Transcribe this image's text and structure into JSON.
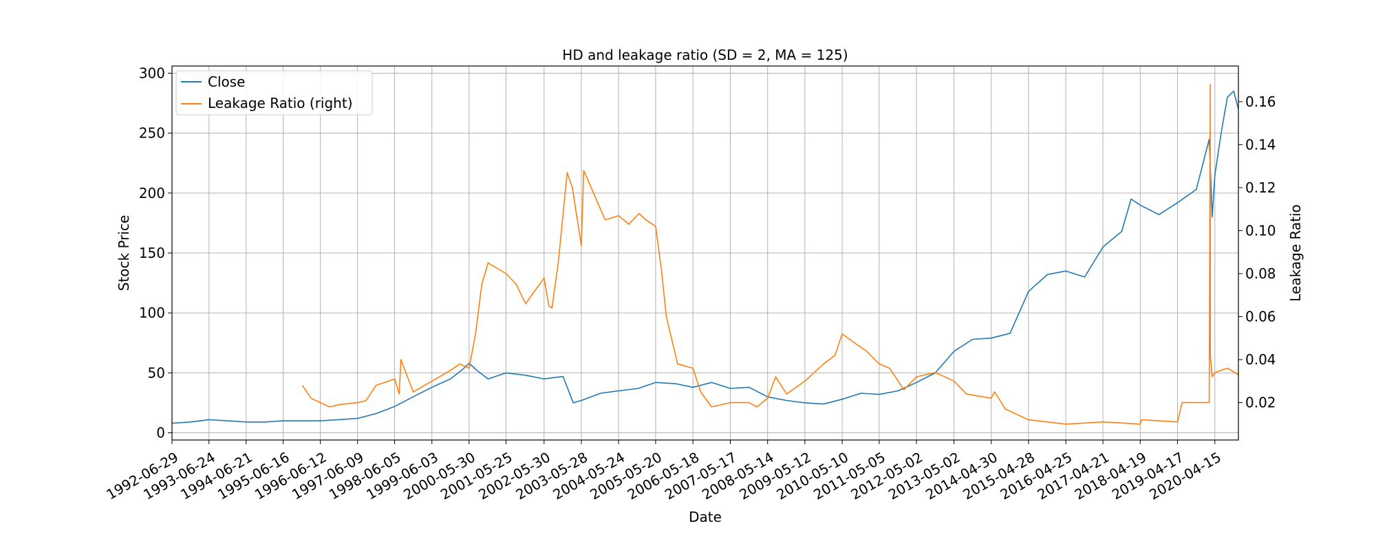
{
  "chart_data": {
    "type": "line",
    "title": "HD and leakage ratio (SD = 2, MA = 125)",
    "xlabel": "Date",
    "ylabel": "Stock Price",
    "y2label": "Leakage Ratio",
    "grid": true,
    "legend_position": "top-left",
    "x_ticks": [
      "1992-06-29",
      "1993-06-24",
      "1994-06-21",
      "1995-06-16",
      "1996-06-12",
      "1997-06-09",
      "1998-06-05",
      "1999-06-03",
      "2000-05-30",
      "2001-05-25",
      "2002-05-30",
      "2003-05-28",
      "2004-05-24",
      "2005-05-20",
      "2006-05-18",
      "2007-05-17",
      "2008-05-14",
      "2009-05-12",
      "2010-05-10",
      "2011-05-05",
      "2012-05-02",
      "2013-05-02",
      "2014-04-30",
      "2015-04-28",
      "2016-04-25",
      "2017-04-21",
      "2018-04-19",
      "2019-04-17",
      "2020-04-15"
    ],
    "xlim": [
      "1992-06-29",
      "2020-11-30"
    ],
    "ylim": [
      -6,
      306
    ],
    "y_ticks": [
      0,
      50,
      100,
      150,
      200,
      250,
      300
    ],
    "y2lim": [
      0.0026,
      0.1766
    ],
    "y2_ticks": [
      "0.02",
      "0.04",
      "0.06",
      "0.08",
      "0.10",
      "0.12",
      "0.14",
      "0.16"
    ],
    "series": [
      {
        "name": "Close",
        "axis": "left",
        "color": "#1f77b4",
        "x": [
          "1992-06-29",
          "1992-12-29",
          "1993-06-24",
          "1993-12-20",
          "1994-06-21",
          "1994-12-19",
          "1995-06-16",
          "1995-12-14",
          "1996-06-12",
          "1996-12-10",
          "1997-06-09",
          "1997-12-05",
          "1998-06-05",
          "1998-12-03",
          "1999-06-03",
          "1999-12-01",
          "2000-03-15",
          "2000-05-30",
          "2000-08-15",
          "2000-12-01",
          "2001-05-25",
          "2001-12-01",
          "2002-05-30",
          "2002-12-01",
          "2003-03-10",
          "2003-05-28",
          "2003-12-01",
          "2004-05-24",
          "2004-12-01",
          "2005-05-20",
          "2005-12-01",
          "2006-05-18",
          "2006-11-15",
          "2007-05-17",
          "2007-11-15",
          "2008-05-14",
          "2008-11-15",
          "2009-05-12",
          "2009-11-10",
          "2010-05-10",
          "2010-11-10",
          "2011-05-05",
          "2011-11-05",
          "2012-05-02",
          "2012-11-01",
          "2013-05-02",
          "2013-11-01",
          "2014-04-30",
          "2014-10-30",
          "2015-04-28",
          "2015-10-28",
          "2016-04-25",
          "2016-10-25",
          "2017-04-21",
          "2017-10-21",
          "2018-01-20",
          "2018-04-19",
          "2018-10-19",
          "2019-04-17",
          "2019-10-17",
          "2020-02-20",
          "2020-03-20",
          "2020-04-15",
          "2020-06-15",
          "2020-08-15",
          "2020-10-15",
          "2020-11-30"
        ],
        "values": [
          8,
          9,
          11,
          10,
          9,
          9,
          10,
          10,
          10,
          11,
          12,
          16,
          22,
          30,
          38,
          45,
          52,
          58,
          52,
          45,
          50,
          48,
          45,
          47,
          25,
          27,
          33,
          35,
          37,
          42,
          41,
          38,
          42,
          37,
          38,
          30,
          27,
          25,
          24,
          28,
          33,
          32,
          35,
          42,
          50,
          68,
          78,
          79,
          83,
          118,
          132,
          135,
          130,
          155,
          168,
          195,
          190,
          182,
          192,
          203,
          245,
          180,
          215,
          250,
          280,
          285,
          270
        ]
      },
      {
        "name": "Leakage Ratio (right)",
        "axis": "right",
        "color": "#ff7f0e",
        "x": [
          "1995-12-20",
          "1996-03-15",
          "1996-06-12",
          "1996-09-10",
          "1996-12-10",
          "1997-06-09",
          "1997-09-01",
          "1997-12-05",
          "1998-06-05",
          "1998-07-20",
          "1998-08-05",
          "1998-12-03",
          "1999-06-03",
          "1999-12-01",
          "2000-03-01",
          "2000-05-30",
          "2000-08-01",
          "2000-10-01",
          "2000-12-01",
          "2001-05-25",
          "2001-09-01",
          "2001-12-01",
          "2002-03-01",
          "2002-05-30",
          "2002-07-15",
          "2002-08-15",
          "2002-10-15",
          "2003-01-10",
          "2003-03-01",
          "2003-05-28",
          "2003-06-20",
          "2003-09-01",
          "2004-01-15",
          "2004-05-24",
          "2004-09-01",
          "2004-12-10",
          "2005-02-15",
          "2005-05-20",
          "2005-07-15",
          "2005-09-01",
          "2005-12-20",
          "2006-05-18",
          "2006-08-01",
          "2006-11-15",
          "2007-05-17",
          "2007-11-15",
          "2008-02-01",
          "2008-05-14",
          "2008-08-01",
          "2008-11-15",
          "2009-05-12",
          "2009-11-10",
          "2010-03-01",
          "2010-05-10",
          "2010-09-01",
          "2011-01-01",
          "2011-05-05",
          "2011-08-15",
          "2012-01-01",
          "2012-05-02",
          "2012-11-01",
          "2013-05-02",
          "2013-09-01",
          "2014-04-30",
          "2014-06-01",
          "2014-09-15",
          "2015-04-28",
          "2016-04-25",
          "2017-04-21",
          "2018-04-19",
          "2018-05-01",
          "2019-04-17",
          "2019-06-01",
          "2019-10-17",
          "2020-02-01",
          "2020-02-20",
          "2020-03-01",
          "2020-03-02",
          "2020-03-20",
          "2020-04-15",
          "2020-08-15",
          "2020-11-30"
        ],
        "values": [
          0.028,
          0.022,
          0.02,
          0.018,
          0.019,
          0.02,
          0.021,
          0.028,
          0.031,
          0.024,
          0.04,
          0.025,
          0.03,
          0.035,
          0.038,
          0.036,
          0.052,
          0.075,
          0.085,
          0.08,
          0.075,
          0.066,
          0.072,
          0.078,
          0.065,
          0.064,
          0.085,
          0.127,
          0.12,
          0.093,
          0.128,
          0.12,
          0.105,
          0.107,
          0.103,
          0.108,
          0.105,
          0.102,
          0.082,
          0.06,
          0.038,
          0.036,
          0.025,
          0.018,
          0.02,
          0.02,
          0.018,
          0.022,
          0.032,
          0.024,
          0.03,
          0.038,
          0.042,
          0.052,
          0.048,
          0.044,
          0.038,
          0.036,
          0.026,
          0.032,
          0.034,
          0.03,
          0.024,
          0.022,
          0.025,
          0.017,
          0.012,
          0.01,
          0.011,
          0.01,
          0.012,
          0.011,
          0.02,
          0.02,
          0.02,
          0.02,
          0.168,
          0.042,
          0.032,
          0.034,
          0.036,
          0.033
        ]
      }
    ]
  }
}
